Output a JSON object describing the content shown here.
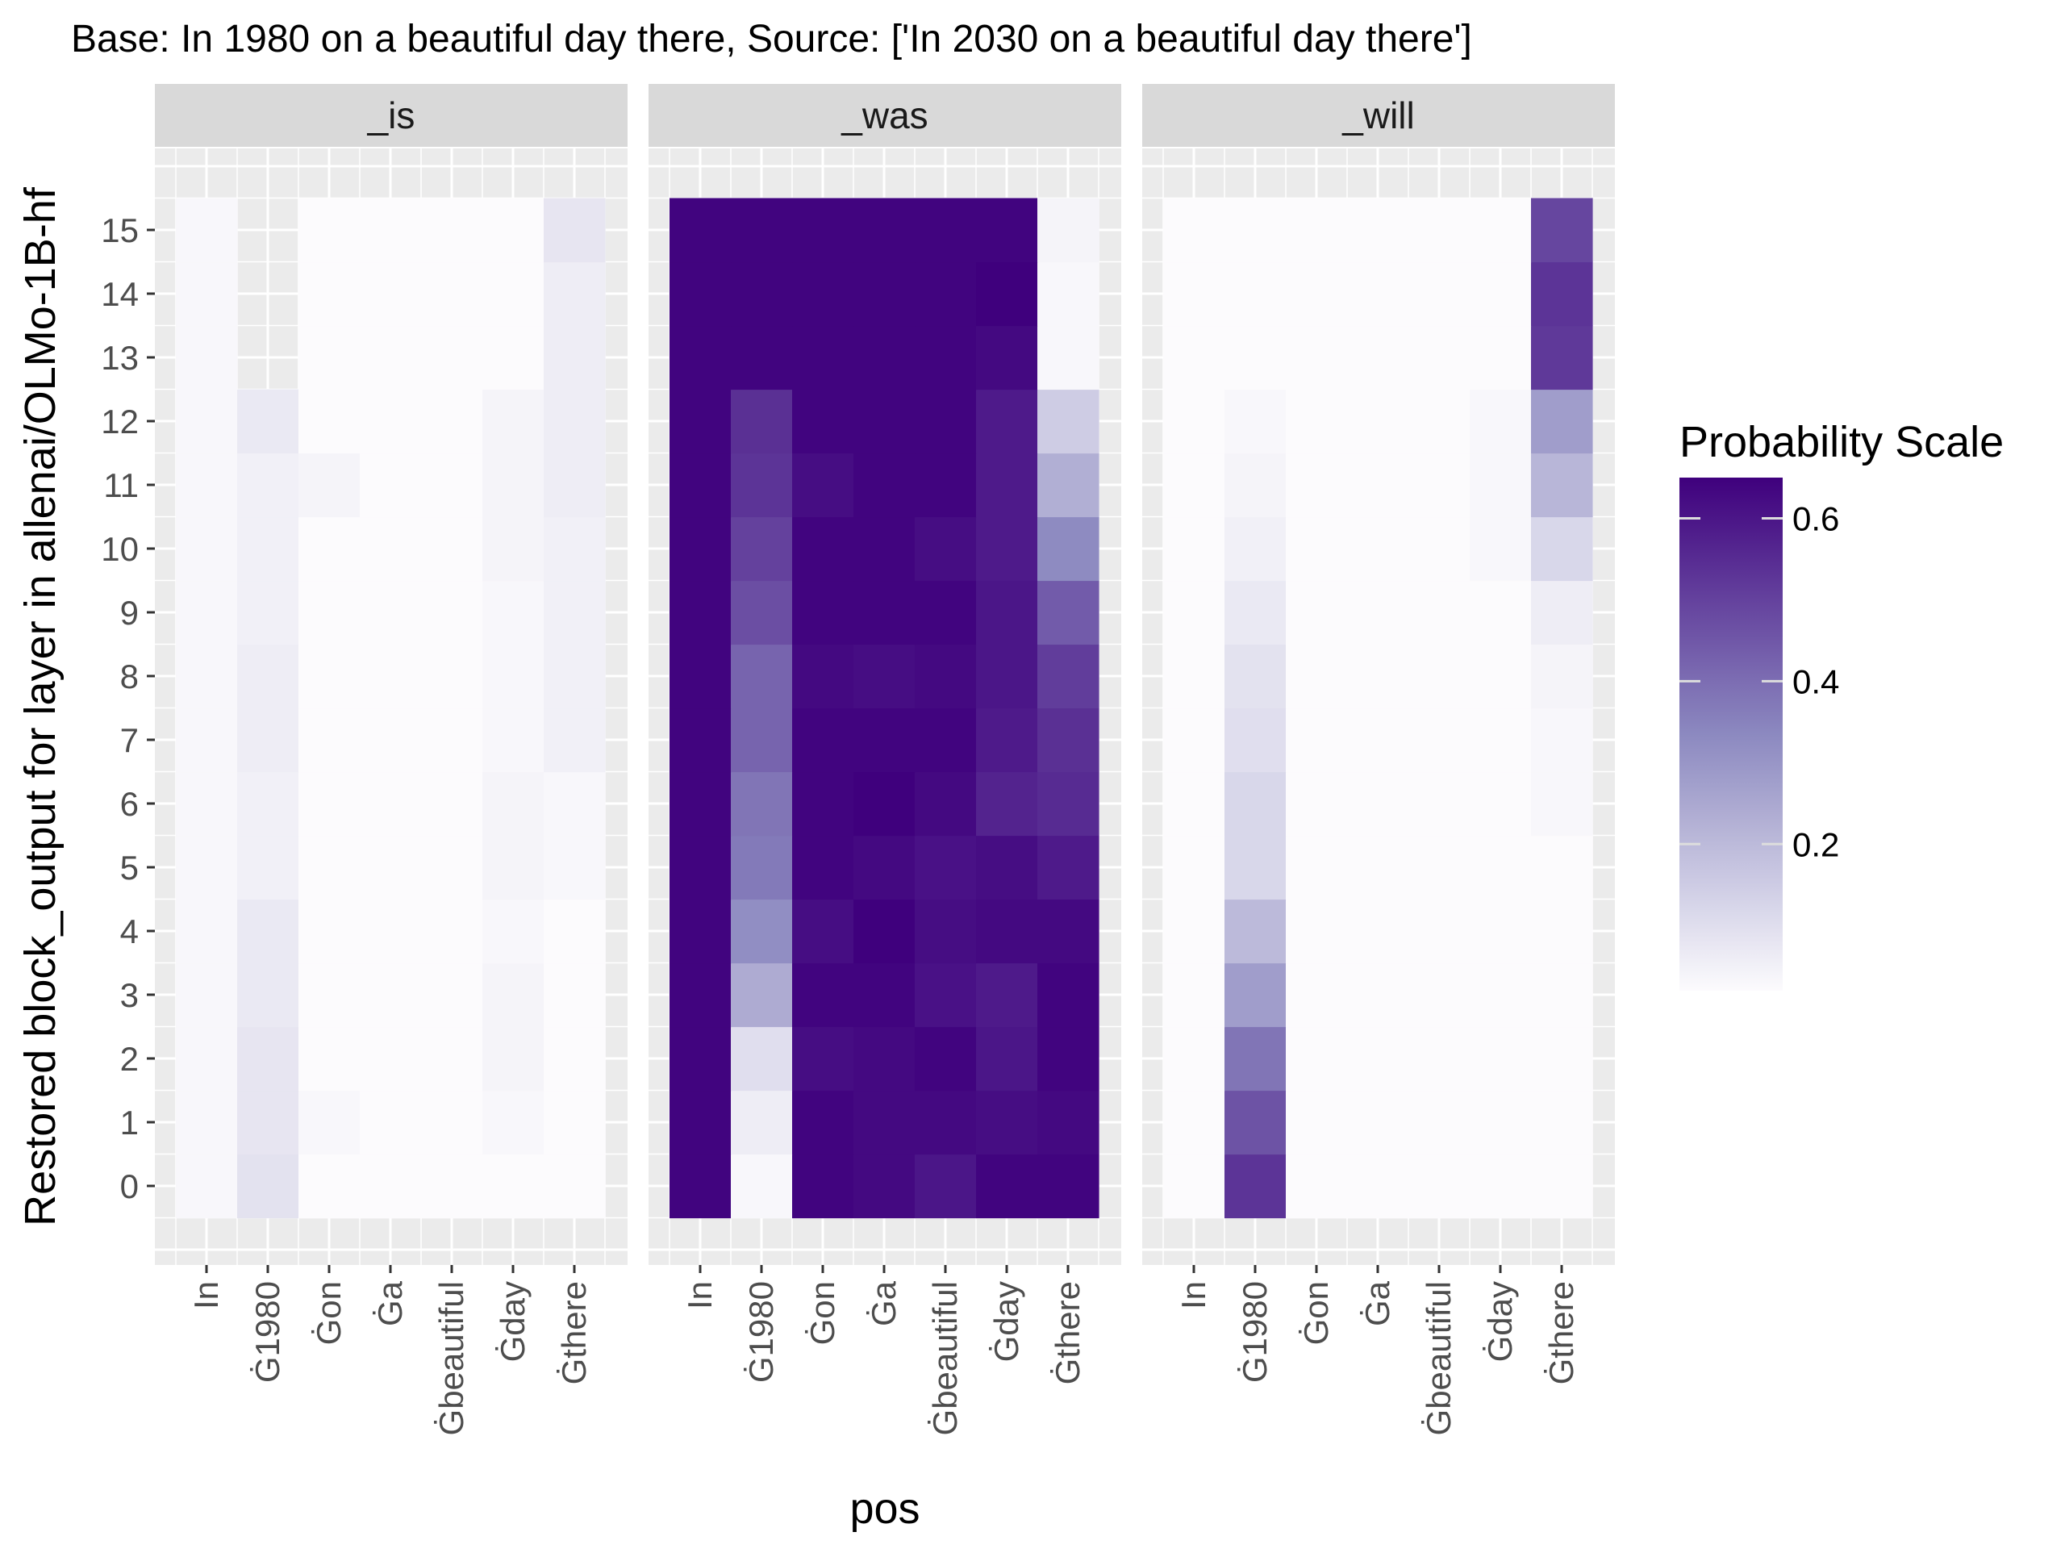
{
  "chart_data": {
    "type": "heatmap",
    "title": "Base: In 1980 on a beautiful day there, Source: ['In 2030 on a beautiful day there']",
    "xlabel": "pos",
    "ylabel": "Restored block_output for layer in allenai/OLMo-1B-hf",
    "x_categories": [
      "In",
      "Ġ1980",
      "Ġon",
      "Ġa",
      "Ġbeautiful",
      "Ġday",
      "Ġthere"
    ],
    "y_categories": [
      "0",
      "1",
      "2",
      "3",
      "4",
      "5",
      "6",
      "7",
      "8",
      "9",
      "10",
      "11",
      "12",
      "13",
      "14",
      "15"
    ],
    "legend": {
      "title": "Probability Scale",
      "position": "right",
      "min": 0.02,
      "max": 0.65,
      "breaks": [
        0.2,
        0.4,
        0.6
      ],
      "break_labels": [
        "0.2",
        "0.4",
        "0.6"
      ],
      "low_color": "#fcfbfd",
      "high_color": "#3f007d"
    },
    "facets": [
      {
        "label": "_is",
        "rows_from": 0,
        "values": [
          [
            0.03,
            0.09,
            0.02,
            0.02,
            0.02,
            0.02,
            0.02
          ],
          [
            0.03,
            0.08,
            0.03,
            0.02,
            0.02,
            0.03,
            0.02
          ],
          [
            0.03,
            0.08,
            0.02,
            0.02,
            0.02,
            0.04,
            0.02
          ],
          [
            0.03,
            0.07,
            0.02,
            0.02,
            0.02,
            0.04,
            0.02
          ],
          [
            0.03,
            0.07,
            0.02,
            0.02,
            0.02,
            0.03,
            0.02
          ],
          [
            0.03,
            0.05,
            0.02,
            0.02,
            0.02,
            0.04,
            0.03
          ],
          [
            0.03,
            0.05,
            0.02,
            0.02,
            0.02,
            0.04,
            0.03
          ],
          [
            0.03,
            0.06,
            0.02,
            0.02,
            0.02,
            0.03,
            0.05
          ],
          [
            0.03,
            0.06,
            0.02,
            0.02,
            0.02,
            0.03,
            0.05
          ],
          [
            0.03,
            0.05,
            0.02,
            0.02,
            0.02,
            0.03,
            0.05
          ],
          [
            0.03,
            0.05,
            0.02,
            0.02,
            0.02,
            0.04,
            0.05
          ],
          [
            0.03,
            0.05,
            0.04,
            0.02,
            0.02,
            0.04,
            0.06
          ],
          [
            0.03,
            0.07,
            0.02,
            0.02,
            0.02,
            0.04,
            0.06
          ],
          [
            0.03,
            null,
            0.02,
            0.02,
            0.02,
            0.02,
            0.06
          ],
          [
            0.03,
            null,
            0.02,
            0.02,
            0.02,
            0.02,
            0.06
          ],
          [
            0.03,
            null,
            0.02,
            0.02,
            0.02,
            0.02,
            0.08
          ]
        ]
      },
      {
        "label": "_was",
        "rows_from": 0,
        "values": [
          [
            0.64,
            0.03,
            0.64,
            0.63,
            0.6,
            0.64,
            0.64
          ],
          [
            0.64,
            0.06,
            0.64,
            0.63,
            0.63,
            0.62,
            0.63
          ],
          [
            0.64,
            0.1,
            0.62,
            0.63,
            0.64,
            0.6,
            0.64
          ],
          [
            0.64,
            0.24,
            0.64,
            0.64,
            0.61,
            0.59,
            0.64
          ],
          [
            0.64,
            0.32,
            0.62,
            0.65,
            0.62,
            0.63,
            0.63
          ],
          [
            0.64,
            0.37,
            0.64,
            0.63,
            0.61,
            0.62,
            0.59
          ],
          [
            0.64,
            0.38,
            0.64,
            0.65,
            0.63,
            0.57,
            0.55
          ],
          [
            0.64,
            0.42,
            0.64,
            0.64,
            0.64,
            0.59,
            0.54
          ],
          [
            0.64,
            0.42,
            0.63,
            0.62,
            0.63,
            0.6,
            0.51
          ],
          [
            0.64,
            0.47,
            0.64,
            0.64,
            0.64,
            0.6,
            0.44
          ],
          [
            0.64,
            0.5,
            0.64,
            0.64,
            0.62,
            0.59,
            0.33
          ],
          [
            0.64,
            0.53,
            0.62,
            0.64,
            0.64,
            0.59,
            0.23
          ],
          [
            0.64,
            0.54,
            0.64,
            0.64,
            0.64,
            0.59,
            0.15
          ],
          [
            0.64,
            0.64,
            0.64,
            0.64,
            0.64,
            0.63,
            0.03
          ],
          [
            0.64,
            0.64,
            0.64,
            0.64,
            0.64,
            0.65,
            0.03
          ],
          [
            0.64,
            0.64,
            0.64,
            0.64,
            0.64,
            0.64,
            0.04
          ]
        ]
      },
      {
        "label": "_will",
        "rows_from": 0,
        "values": [
          [
            0.02,
            0.53,
            0.02,
            0.02,
            0.02,
            0.02,
            0.02
          ],
          [
            0.02,
            0.46,
            0.02,
            0.02,
            0.02,
            0.02,
            0.02
          ],
          [
            0.02,
            0.38,
            0.02,
            0.02,
            0.02,
            0.02,
            0.02
          ],
          [
            0.02,
            0.28,
            0.02,
            0.02,
            0.02,
            0.02,
            0.02
          ],
          [
            0.02,
            0.2,
            0.02,
            0.02,
            0.02,
            0.02,
            0.02
          ],
          [
            0.02,
            0.12,
            0.02,
            0.02,
            0.02,
            0.02,
            0.02
          ],
          [
            0.02,
            0.12,
            0.02,
            0.02,
            0.02,
            0.02,
            0.03
          ],
          [
            0.02,
            0.1,
            0.02,
            0.02,
            0.02,
            0.02,
            0.03
          ],
          [
            0.02,
            0.09,
            0.02,
            0.02,
            0.02,
            0.02,
            0.04
          ],
          [
            0.02,
            0.07,
            0.02,
            0.02,
            0.02,
            0.02,
            0.06
          ],
          [
            0.02,
            0.05,
            0.02,
            0.02,
            0.02,
            0.03,
            0.12
          ],
          [
            0.02,
            0.04,
            0.02,
            0.02,
            0.02,
            0.03,
            0.21
          ],
          [
            0.02,
            0.03,
            0.02,
            0.02,
            0.02,
            0.03,
            0.28
          ],
          [
            0.02,
            0.02,
            0.02,
            0.02,
            0.02,
            0.02,
            0.52
          ],
          [
            0.02,
            0.02,
            0.02,
            0.02,
            0.02,
            0.02,
            0.53
          ],
          [
            0.02,
            0.02,
            0.02,
            0.02,
            0.02,
            0.02,
            0.49
          ]
        ]
      }
    ],
    "grid": true
  }
}
